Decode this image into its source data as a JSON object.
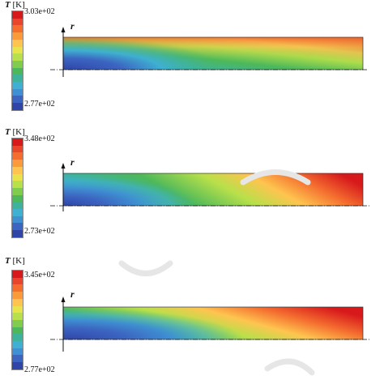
{
  "figure": {
    "panels": [
      {
        "colorbar": {
          "variable": "T",
          "unit": "[K]",
          "max_label": "3.03e+02",
          "min_label": "2.77e+02",
          "colors": [
            "#d7191c",
            "#e8452a",
            "#f46d2f",
            "#fa9a3a",
            "#fec44f",
            "#e8e34a",
            "#b8e04a",
            "#7fcc4e",
            "#4db85a",
            "#3fb39a",
            "#3fb0d1",
            "#3f8fd1",
            "#3c64c1",
            "#2f46a8"
          ]
        },
        "axis_label": "r"
      },
      {
        "colorbar": {
          "variable": "T",
          "unit": "[K]",
          "max_label": "3.48e+02",
          "min_label": "2.73e+02",
          "colors": [
            "#d7191c",
            "#e8452a",
            "#f46d2f",
            "#fa9a3a",
            "#fec44f",
            "#e8e34a",
            "#b8e04a",
            "#7fcc4e",
            "#4db85a",
            "#3fb39a",
            "#3fb0d1",
            "#3f8fd1",
            "#3c64c1",
            "#2f46a8"
          ]
        },
        "axis_label": "r"
      },
      {
        "colorbar": {
          "variable": "T",
          "unit": "[K]",
          "max_label": "3.45e+02",
          "min_label": "2.77e+02",
          "colors": [
            "#d7191c",
            "#e8452a",
            "#f46d2f",
            "#fa9a3a",
            "#fec44f",
            "#e8e34a",
            "#b8e04a",
            "#7fcc4e",
            "#4db85a",
            "#3fb39a",
            "#3fb0d1",
            "#3f8fd1",
            "#3c64c1",
            "#2f46a8"
          ]
        },
        "axis_label": "r"
      }
    ]
  }
}
